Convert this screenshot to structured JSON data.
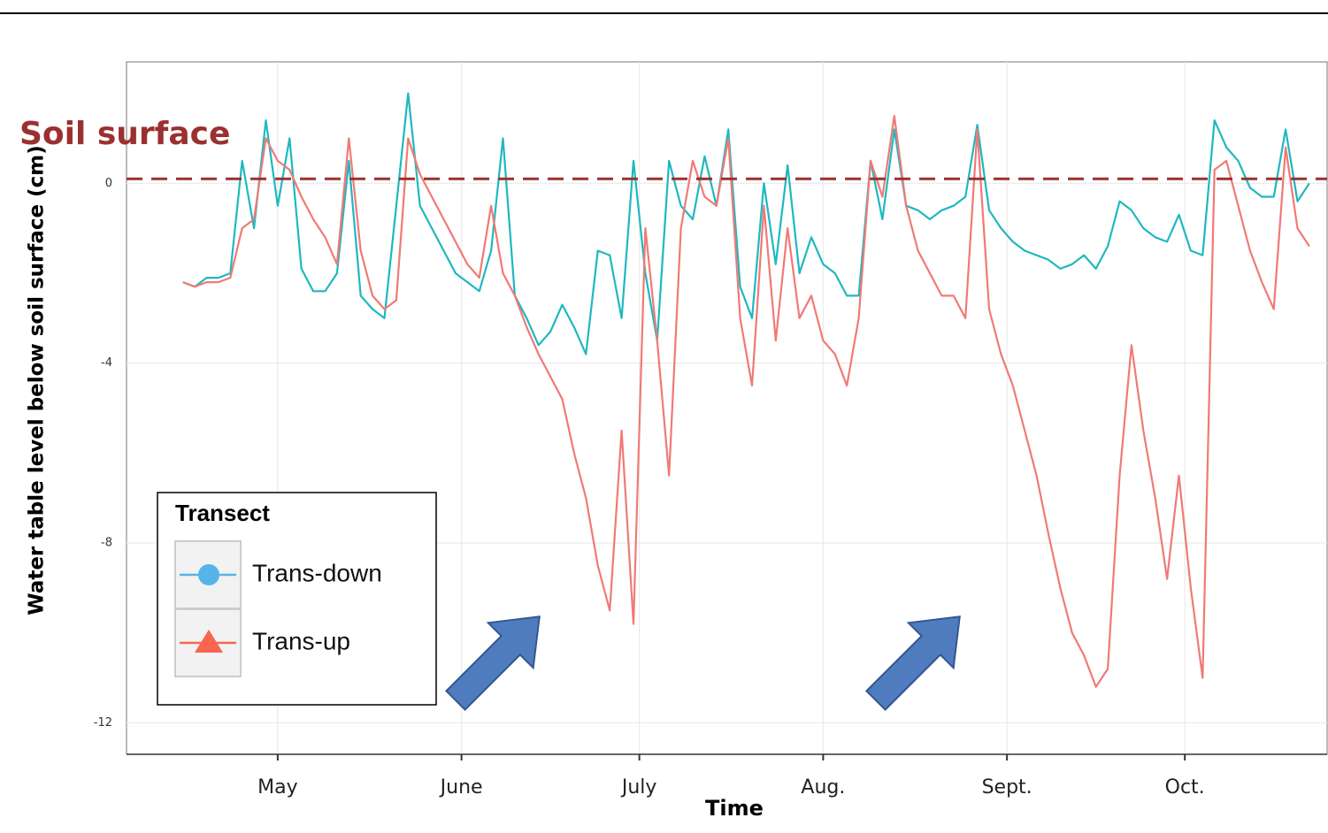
{
  "chart_data": {
    "type": "line",
    "x_label": "Time",
    "y_label": "Water table level below soil surface (cm)",
    "x": [
      -16,
      -14,
      -12,
      -10,
      -8,
      -6,
      -4,
      -2,
      0,
      2,
      4,
      6,
      8,
      10,
      12,
      14,
      16,
      18,
      20,
      22,
      24,
      26,
      28,
      30,
      32,
      34,
      36,
      38,
      40,
      42,
      44,
      46,
      48,
      50,
      52,
      54,
      56,
      58,
      60,
      62,
      64,
      66,
      68,
      70,
      72,
      74,
      76,
      78,
      80,
      82,
      84,
      86,
      88,
      90,
      92,
      94,
      96,
      98,
      100,
      102,
      104,
      106,
      108,
      110,
      112,
      114,
      116,
      118,
      120,
      122,
      124,
      126,
      128,
      130,
      132,
      134,
      136,
      138,
      140,
      142,
      144,
      146,
      148,
      150,
      152,
      154,
      156,
      158,
      160,
      162,
      164,
      166,
      168,
      170,
      172,
      174
    ],
    "series": [
      {
        "name": "Trans-down",
        "color": "#1fb8c0",
        "legend_color": "#56b4e9",
        "values": [
          -2.2,
          -2.3,
          -2.1,
          -2.1,
          -2.0,
          0.5,
          -1.0,
          1.4,
          -0.5,
          1.0,
          -1.9,
          -2.4,
          -2.4,
          -2.0,
          0.5,
          -2.5,
          -2.8,
          -3.0,
          -0.5,
          2.0,
          -0.5,
          -1.0,
          -1.5,
          -2.0,
          -2.2,
          -2.4,
          -1.5,
          1.0,
          -2.5,
          -3.0,
          -3.6,
          -3.3,
          -2.7,
          -3.2,
          -3.8,
          -1.5,
          -1.6,
          -3.0,
          0.5,
          -2.0,
          -3.5,
          0.5,
          -0.5,
          -0.8,
          0.6,
          -0.5,
          1.2,
          -2.3,
          -3.0,
          0.0,
          -1.8,
          0.4,
          -2.0,
          -1.2,
          -1.8,
          -2.0,
          -2.5,
          -2.5,
          0.5,
          -0.8,
          1.2,
          -0.5,
          -0.6,
          -0.8,
          -0.6,
          -0.5,
          -0.3,
          1.3,
          -0.6,
          -1.0,
          -1.3,
          -1.5,
          -1.6,
          -1.7,
          -1.9,
          -1.8,
          -1.6,
          -1.9,
          -1.4,
          -0.4,
          -0.6,
          -1.0,
          -1.2,
          -1.3,
          -0.7,
          -1.5,
          -1.6,
          1.4,
          0.8,
          0.5,
          -0.1,
          -0.3,
          -0.3,
          1.2,
          -0.4,
          0.0
        ]
      },
      {
        "name": "Trans-up",
        "color": "#f07a75",
        "legend_color": "#f8664f",
        "values": [
          -2.2,
          -2.3,
          -2.2,
          -2.2,
          -2.1,
          -1.0,
          -0.8,
          1.0,
          0.5,
          0.3,
          -0.3,
          -0.8,
          -1.2,
          -1.8,
          1.0,
          -1.5,
          -2.5,
          -2.8,
          -2.6,
          1.0,
          0.2,
          -0.3,
          -0.8,
          -1.3,
          -1.8,
          -2.1,
          -0.5,
          -2.0,
          -2.5,
          -3.2,
          -3.8,
          -4.3,
          -4.8,
          -6.0,
          -7.0,
          -8.5,
          -9.5,
          -5.5,
          -9.8,
          -1.0,
          -3.5,
          -6.5,
          -1.0,
          0.5,
          -0.3,
          -0.5,
          1.0,
          -3.0,
          -4.5,
          -0.5,
          -3.5,
          -1.0,
          -3.0,
          -2.5,
          -3.5,
          -3.8,
          -4.5,
          -3.0,
          0.5,
          -0.3,
          1.5,
          -0.5,
          -1.5,
          -2.0,
          -2.5,
          -2.5,
          -3.0,
          1.2,
          -2.8,
          -3.8,
          -4.5,
          -5.5,
          -6.5,
          -7.8,
          -9.0,
          -10.0,
          -10.5,
          -11.2,
          -10.8,
          -6.5,
          -3.6,
          -5.5,
          -7.0,
          -8.8,
          -6.5,
          -9.0,
          -11.0,
          0.3,
          0.5,
          -0.5,
          -1.5,
          -2.2,
          -2.8,
          0.8,
          -1.0,
          -1.4
        ]
      }
    ],
    "xlim": [
      -25.5,
      177
    ],
    "xticks": [
      {
        "value": 0,
        "label": "May"
      },
      {
        "value": 31,
        "label": "June"
      },
      {
        "value": 61,
        "label": "July"
      },
      {
        "value": 92,
        "label": "Aug."
      },
      {
        "value": 123,
        "label": "Sept."
      },
      {
        "value": 153,
        "label": "Oct."
      }
    ],
    "ylim": [
      -12.7,
      2.7
    ],
    "yticks": [
      -12,
      -8,
      -4,
      0
    ],
    "grid": true,
    "reference_line": {
      "value": 0.1,
      "label": "Soil surface",
      "color": "#9b3030"
    },
    "legend": {
      "title": "Transect",
      "position": "lower left"
    }
  }
}
